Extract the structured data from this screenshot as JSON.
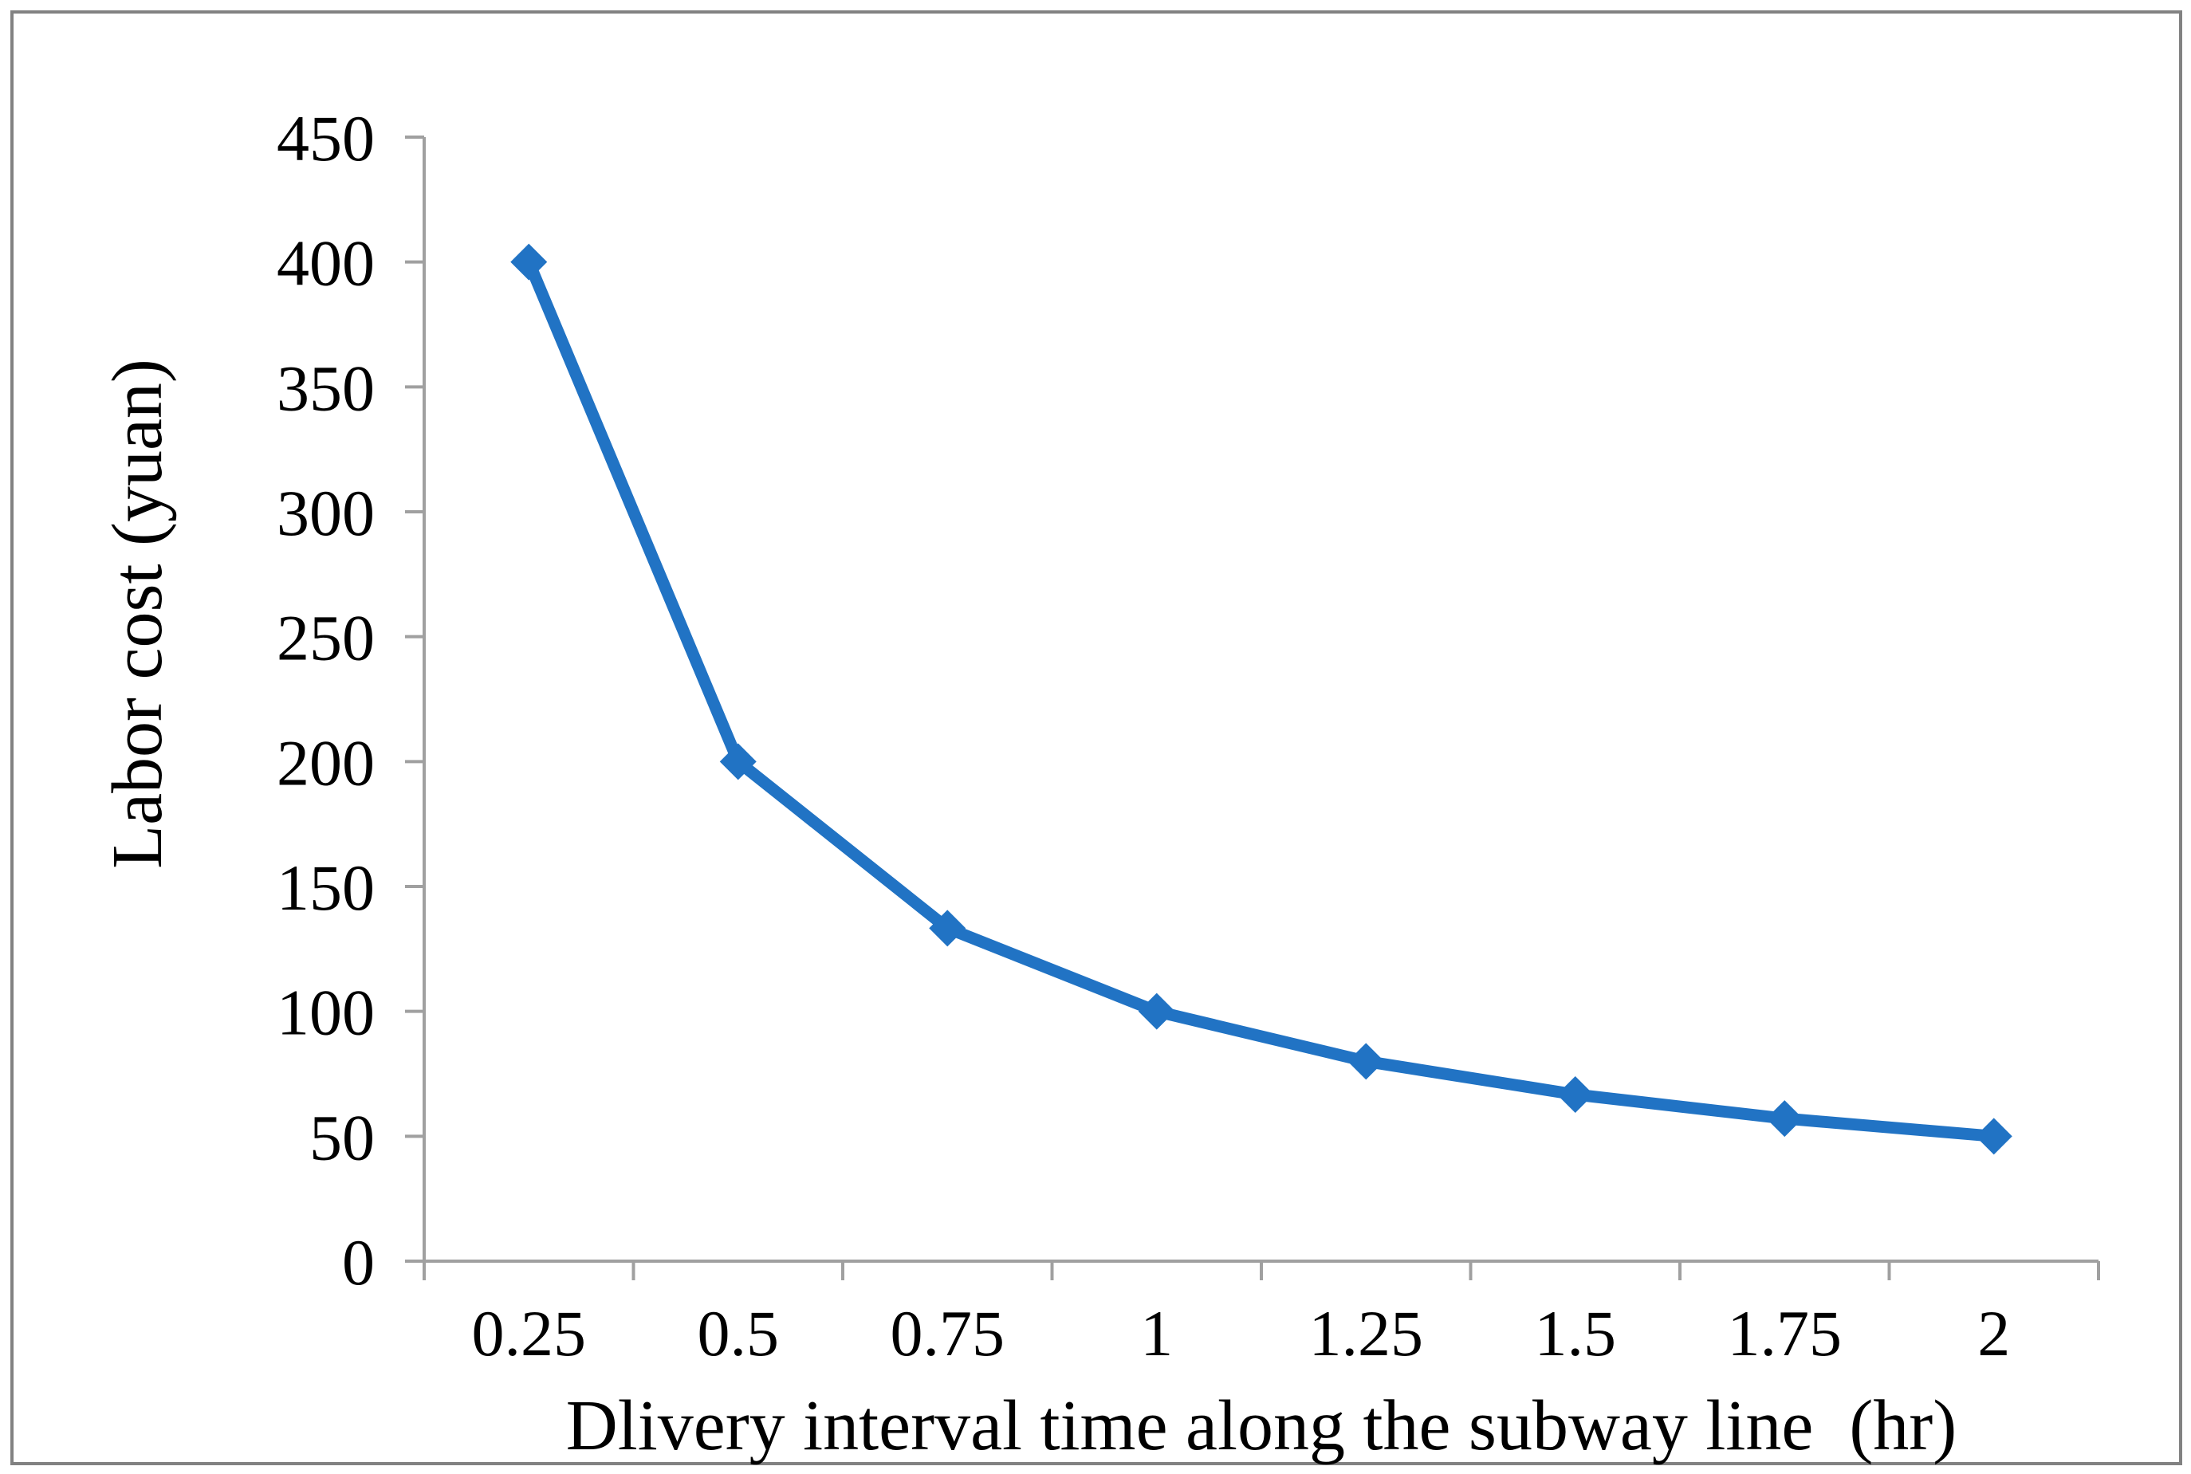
{
  "frame": {
    "border_color": "#828282",
    "background": "#ffffff"
  },
  "chart_data": {
    "type": "line",
    "title": "",
    "xlabel": "Dlivery interval time along the subway line  (hr)",
    "ylabel": "Labor cost (yuan)",
    "categories": [
      "0.25",
      "0.5",
      "0.75",
      "1",
      "1.25",
      "1.5",
      "1.75",
      "2"
    ],
    "series": [
      {
        "name": "Labor cost",
        "values": [
          400,
          200,
          133.3,
          100,
          80,
          66.7,
          57.1,
          50
        ]
      }
    ],
    "ylim": [
      0,
      450
    ],
    "ytick_step": 50,
    "ytick_labels": [
      "0",
      "50",
      "100",
      "150",
      "200",
      "250",
      "300",
      "350",
      "400",
      "450"
    ],
    "grid": false,
    "legend_position": "none",
    "marker": "diamond",
    "colors": {
      "line": "#2173C4",
      "marker": "#2173C4",
      "axis": "#A0A0A0",
      "text": "#000000"
    }
  }
}
